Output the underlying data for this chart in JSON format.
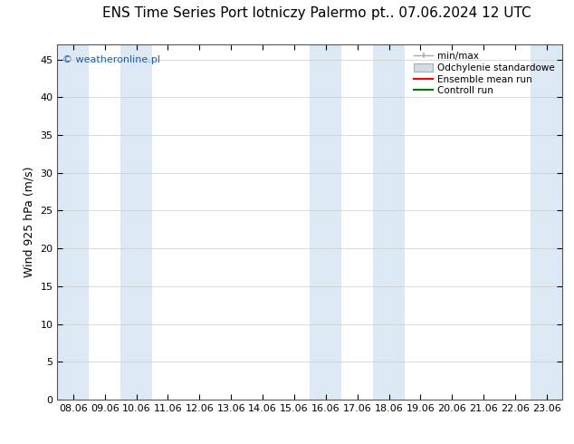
{
  "title_left": "ENS Time Series Port lotniczy Palermo",
  "title_right": "pt.. 07.06.2024 12 UTC",
  "ylabel": "Wind 925 hPa (m/s)",
  "watermark": "© weatheronline.pl",
  "x_tick_labels": [
    "08.06",
    "09.06",
    "10.06",
    "11.06",
    "12.06",
    "13.06",
    "14.06",
    "15.06",
    "16.06",
    "17.06",
    "18.06",
    "19.06",
    "20.06",
    "21.06",
    "22.06",
    "23.06"
  ],
  "x_tick_positions": [
    0,
    1,
    2,
    3,
    4,
    5,
    6,
    7,
    8,
    9,
    10,
    11,
    12,
    13,
    14,
    15
  ],
  "ylim": [
    0,
    47
  ],
  "yticks": [
    0,
    5,
    10,
    15,
    20,
    25,
    30,
    35,
    40,
    45
  ],
  "xlim": [
    -0.5,
    15.5
  ],
  "bg_color": "#ffffff",
  "plot_bg_color": "#ffffff",
  "shaded_bands": [
    {
      "x_start": -0.5,
      "x_end": 0.5,
      "color": "#dce9f5"
    },
    {
      "x_start": 1.5,
      "x_end": 2.5,
      "color": "#dce9f5"
    },
    {
      "x_start": 7.5,
      "x_end": 8.5,
      "color": "#dce9f5"
    },
    {
      "x_start": 9.5,
      "x_end": 10.5,
      "color": "#dce9f5"
    },
    {
      "x_start": 14.5,
      "x_end": 15.5,
      "color": "#dce9f5"
    }
  ],
  "legend_items": [
    {
      "label": "min/max",
      "type": "errorbar",
      "color": "#aaaaaa"
    },
    {
      "label": "Odchylenie standardowe",
      "type": "box",
      "facecolor": "#d0dde8",
      "edgecolor": "#aaaaaa"
    },
    {
      "label": "Ensemble mean run",
      "type": "line",
      "color": "#ff0000"
    },
    {
      "label": "Controll run",
      "type": "line",
      "color": "#007700"
    }
  ],
  "title_fontsize": 11,
  "axis_label_fontsize": 9,
  "tick_fontsize": 8,
  "legend_fontsize": 7.5,
  "watermark_color": "#1a5fa8",
  "watermark_fontsize": 8
}
